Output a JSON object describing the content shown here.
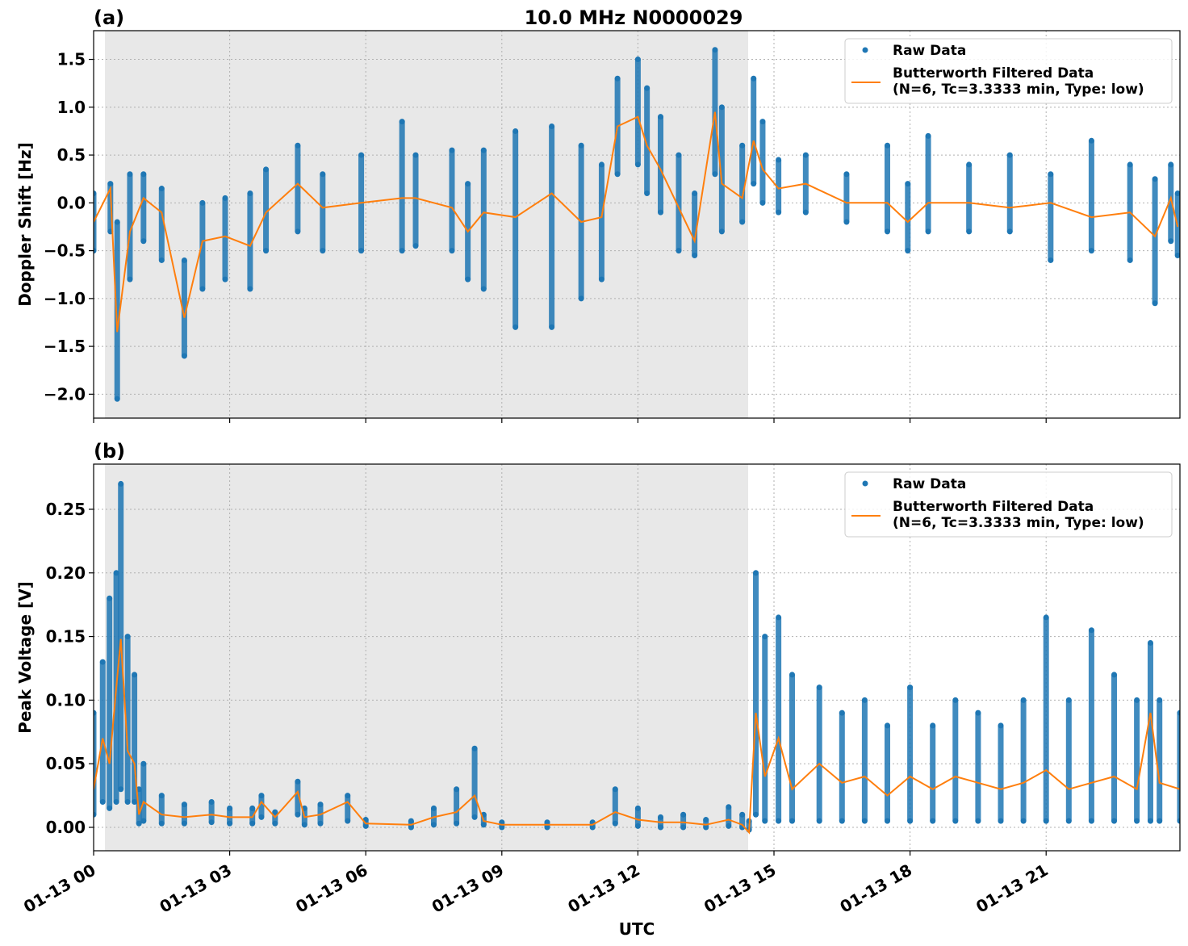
{
  "chart_data": [
    {
      "type": "scatter-line",
      "panel_label": "(a)",
      "title": "10.0 MHz N0000029",
      "ylabel": "Doppler Shift [Hz]",
      "xlim": [
        0,
        23.95
      ],
      "ylim": [
        -2.25,
        1.8
      ],
      "grid": true,
      "legend": "upper right",
      "shade": [
        0.25,
        14.43
      ],
      "xticks": [
        0,
        3,
        6,
        9,
        12,
        15,
        18,
        21
      ],
      "yticks": [
        {
          "value": -2.0,
          "label": "−2.0"
        },
        {
          "value": -1.5,
          "label": "−1.5"
        },
        {
          "value": -1.0,
          "label": "−1.0"
        },
        {
          "value": -0.5,
          "label": "−0.5"
        },
        {
          "value": 0.0,
          "label": "0.0"
        },
        0.5,
        {
          "value": 1.0,
          "label": "1.0"
        },
        1.5
      ],
      "series": [
        {
          "name": "Raw Data",
          "color": "#1f77b4",
          "marker": "dot",
          "x": [
            0,
            0.37,
            0.52,
            0.8,
            1.1,
            1.5,
            2.0,
            2.4,
            2.9,
            3.45,
            3.8,
            4.5,
            5.05,
            5.9,
            6.8,
            7.1,
            7.9,
            8.25,
            8.6,
            9.3,
            10.1,
            10.75,
            11.2,
            11.55,
            12.0,
            12.2,
            12.5,
            12.9,
            13.25,
            13.7,
            13.85,
            14.3,
            14.55,
            14.75,
            15.1,
            15.7,
            16.6,
            17.5,
            17.95,
            18.4,
            19.3,
            20.2,
            21.1,
            22.0,
            22.85,
            23.4,
            23.75,
            23.9,
            0,
            0.37,
            0.52,
            0.8,
            1.1,
            1.5,
            2.0,
            2.4,
            2.9,
            3.45,
            3.8,
            4.5,
            5.05,
            5.9,
            6.8,
            7.1,
            7.9,
            8.25,
            8.6,
            9.3,
            10.1,
            10.75,
            11.2,
            11.55,
            12.0,
            12.2,
            12.5,
            12.9,
            13.25,
            13.7,
            13.85,
            14.3,
            14.55,
            14.75,
            15.1,
            15.7,
            16.6,
            17.5,
            17.95,
            18.4,
            19.3,
            20.2,
            21.1,
            22.0,
            22.85,
            23.4,
            23.75,
            23.9
          ],
          "values": [
            0.1,
            0.2,
            -0.2,
            0.3,
            0.3,
            0.15,
            -0.6,
            0.0,
            0.05,
            0.1,
            0.35,
            0.6,
            0.3,
            0.5,
            0.85,
            0.5,
            0.55,
            0.2,
            0.55,
            0.75,
            0.8,
            0.6,
            0.4,
            1.3,
            1.5,
            1.2,
            0.9,
            0.5,
            0.1,
            1.6,
            1.0,
            0.6,
            1.3,
            0.85,
            0.45,
            0.5,
            0.3,
            0.6,
            0.2,
            0.7,
            0.4,
            0.5,
            0.3,
            0.65,
            0.4,
            0.25,
            0.4,
            0.1,
            -0.5,
            -0.3,
            -2.05,
            -0.8,
            -0.4,
            -0.6,
            -1.6,
            -0.9,
            -0.8,
            -0.9,
            -0.5,
            -0.3,
            -0.5,
            -0.5,
            -0.5,
            -0.45,
            -0.5,
            -0.8,
            -0.9,
            -1.3,
            -1.3,
            -1.0,
            -0.8,
            0.3,
            0.4,
            0.1,
            -0.1,
            -0.5,
            -0.55,
            0.3,
            -0.3,
            -0.2,
            0.2,
            0.0,
            -0.1,
            -0.1,
            -0.2,
            -0.3,
            -0.5,
            -0.3,
            -0.3,
            -0.3,
            -0.6,
            -0.5,
            -0.6,
            -1.05,
            -0.4,
            -0.55
          ]
        },
        {
          "name": "Butterworth Filtered Data\n(N=6, Tc=3.3333 min, Type: low)",
          "color": "#ff7f0e",
          "marker": "line",
          "x": [
            0,
            0.37,
            0.52,
            0.8,
            1.1,
            1.5,
            2.0,
            2.4,
            2.9,
            3.45,
            3.8,
            4.5,
            5.05,
            5.9,
            6.8,
            7.1,
            7.9,
            8.25,
            8.6,
            9.3,
            10.1,
            10.75,
            11.2,
            11.55,
            12.0,
            12.2,
            12.5,
            12.9,
            13.25,
            13.7,
            13.85,
            14.3,
            14.55,
            14.75,
            15.1,
            15.7,
            16.6,
            17.5,
            17.95,
            18.4,
            19.3,
            20.2,
            21.1,
            22.0,
            22.85,
            23.4,
            23.75,
            23.9
          ],
          "values": [
            -0.2,
            0.15,
            -1.35,
            -0.3,
            0.05,
            -0.1,
            -1.2,
            -0.4,
            -0.35,
            -0.45,
            -0.1,
            0.2,
            -0.05,
            0.0,
            0.05,
            0.05,
            -0.05,
            -0.3,
            -0.1,
            -0.15,
            0.1,
            -0.2,
            -0.15,
            0.8,
            0.9,
            0.6,
            0.35,
            -0.05,
            -0.4,
            0.95,
            0.2,
            0.05,
            0.65,
            0.35,
            0.15,
            0.2,
            0.0,
            0.0,
            -0.2,
            0.0,
            0.0,
            -0.05,
            0.0,
            -0.15,
            -0.1,
            -0.35,
            0.05,
            -0.25
          ]
        }
      ]
    },
    {
      "type": "scatter-line",
      "panel_label": "(b)",
      "ylabel": "Peak Voltage [V]",
      "xlabel": "UTC",
      "xlim": [
        0,
        23.95
      ],
      "ylim": [
        -0.0184,
        0.2855
      ],
      "grid": true,
      "legend": "upper right",
      "shade": [
        0.25,
        14.43
      ],
      "xticks": [
        {
          "value": 0,
          "label": "01-13 00"
        },
        {
          "value": 3,
          "label": "01-13 03"
        },
        {
          "value": 6,
          "label": "01-13 06"
        },
        {
          "value": 9,
          "label": "01-13 09"
        },
        {
          "value": 12,
          "label": "01-13 12"
        },
        {
          "value": 15,
          "label": "01-13 15"
        },
        {
          "value": 18,
          "label": "01-13 18"
        },
        {
          "value": 21,
          "label": "01-13 21"
        }
      ],
      "yticks": [
        {
          "value": 0.0,
          "label": "0.00"
        },
        0.05,
        {
          "value": 0.1,
          "label": "0.10"
        },
        0.15,
        {
          "value": 0.2,
          "label": "0.20"
        },
        0.25
      ],
      "series": [
        {
          "name": "Raw Data",
          "color": "#1f77b4",
          "marker": "dot",
          "x": [
            0,
            0.2,
            0.35,
            0.5,
            0.6,
            0.75,
            0.9,
            1.0,
            1.1,
            1.5,
            2.0,
            2.6,
            3.0,
            3.5,
            3.7,
            4.0,
            4.5,
            4.65,
            5.0,
            5.6,
            6.0,
            7.0,
            7.5,
            8.0,
            8.4,
            8.6,
            9.0,
            10.0,
            11.0,
            11.5,
            12.0,
            12.5,
            13.0,
            13.5,
            14.0,
            14.3,
            14.45,
            14.6,
            14.8,
            15.1,
            15.4,
            16.0,
            16.5,
            17.0,
            17.5,
            18.0,
            18.5,
            19.0,
            19.5,
            20.0,
            20.5,
            21.0,
            21.5,
            22.0,
            22.5,
            23.0,
            23.3,
            23.5,
            23.95,
            0,
            0.2,
            0.35,
            0.5,
            0.6,
            0.75,
            0.9,
            1.0,
            1.1,
            1.5,
            2.0,
            2.6,
            3.0,
            3.5,
            3.7,
            4.0,
            4.5,
            4.65,
            5.0,
            5.6,
            6.0,
            7.0,
            7.5,
            8.0,
            8.4,
            8.6,
            9.0,
            10.0,
            11.0,
            11.5,
            12.0,
            12.5,
            13.0,
            13.5,
            14.0,
            14.3,
            14.45,
            14.6,
            14.8,
            15.1,
            15.4,
            16.0,
            16.5,
            17.0,
            17.5,
            18.0,
            18.5,
            19.0,
            19.5,
            20.0,
            20.5,
            21.0,
            21.5,
            22.0,
            22.5,
            23.0,
            23.3,
            23.5,
            23.95
          ],
          "values": [
            0.09,
            0.13,
            0.18,
            0.2,
            0.27,
            0.15,
            0.12,
            0.03,
            0.05,
            0.025,
            0.018,
            0.02,
            0.015,
            0.015,
            0.025,
            0.012,
            0.036,
            0.015,
            0.018,
            0.025,
            0.006,
            0.005,
            0.015,
            0.03,
            0.062,
            0.01,
            0.004,
            0.004,
            0.004,
            0.03,
            0.015,
            0.008,
            0.01,
            0.006,
            0.016,
            0.01,
            0.005,
            0.2,
            0.15,
            0.165,
            0.12,
            0.11,
            0.09,
            0.1,
            0.08,
            0.11,
            0.08,
            0.1,
            0.09,
            0.08,
            0.1,
            0.165,
            0.1,
            0.155,
            0.12,
            0.1,
            0.145,
            0.1,
            0.09,
            0.01,
            0.02,
            0.015,
            0.02,
            0.03,
            0.02,
            0.02,
            0.003,
            0.005,
            0.003,
            0.003,
            0.004,
            0.003,
            0.003,
            0.008,
            0.003,
            0.01,
            0.002,
            0.003,
            0.005,
            0.001,
            0.0,
            0.002,
            0.003,
            0.008,
            0.002,
            0.0,
            0.0,
            0.0,
            0.003,
            0.001,
            0.0,
            0.0,
            0.0,
            0.001,
            0.0,
            -0.002,
            0.01,
            0.005,
            0.005,
            0.005,
            0.005,
            0.005,
            0.005,
            0.005,
            0.005,
            0.005,
            0.005,
            0.005,
            0.005,
            0.005,
            0.005,
            0.005,
            0.005,
            0.005,
            0.005,
            0.005,
            0.005,
            0.005
          ]
        },
        {
          "name": "Butterworth Filtered Data\n(N=6, Tc=3.3333 min, Type: low)",
          "color": "#ff7f0e",
          "marker": "line",
          "x": [
            0,
            0.2,
            0.35,
            0.5,
            0.6,
            0.75,
            0.9,
            1.0,
            1.1,
            1.5,
            2.0,
            2.6,
            3.0,
            3.5,
            3.7,
            4.0,
            4.5,
            4.65,
            5.0,
            5.6,
            6.0,
            7.0,
            7.5,
            8.0,
            8.4,
            8.6,
            9.0,
            10.0,
            11.0,
            11.5,
            12.0,
            12.5,
            13.0,
            13.5,
            14.0,
            14.3,
            14.45,
            14.6,
            14.8,
            15.1,
            15.4,
            16.0,
            16.5,
            17.0,
            17.5,
            18.0,
            18.5,
            19.0,
            19.5,
            20.0,
            20.5,
            21.0,
            21.5,
            22.0,
            22.5,
            23.0,
            23.3,
            23.5,
            23.95
          ],
          "values": [
            0.03,
            0.07,
            0.05,
            0.11,
            0.148,
            0.06,
            0.05,
            0.01,
            0.02,
            0.01,
            0.008,
            0.01,
            0.008,
            0.008,
            0.02,
            0.008,
            0.028,
            0.008,
            0.01,
            0.02,
            0.003,
            0.002,
            0.008,
            0.012,
            0.025,
            0.005,
            0.002,
            0.002,
            0.002,
            0.012,
            0.006,
            0.004,
            0.004,
            0.002,
            0.006,
            0.002,
            -0.004,
            0.09,
            0.04,
            0.07,
            0.03,
            0.05,
            0.035,
            0.04,
            0.025,
            0.04,
            0.03,
            0.04,
            0.035,
            0.03,
            0.035,
            0.045,
            0.03,
            0.035,
            0.04,
            0.03,
            0.09,
            0.035,
            0.03
          ]
        }
      ]
    }
  ]
}
